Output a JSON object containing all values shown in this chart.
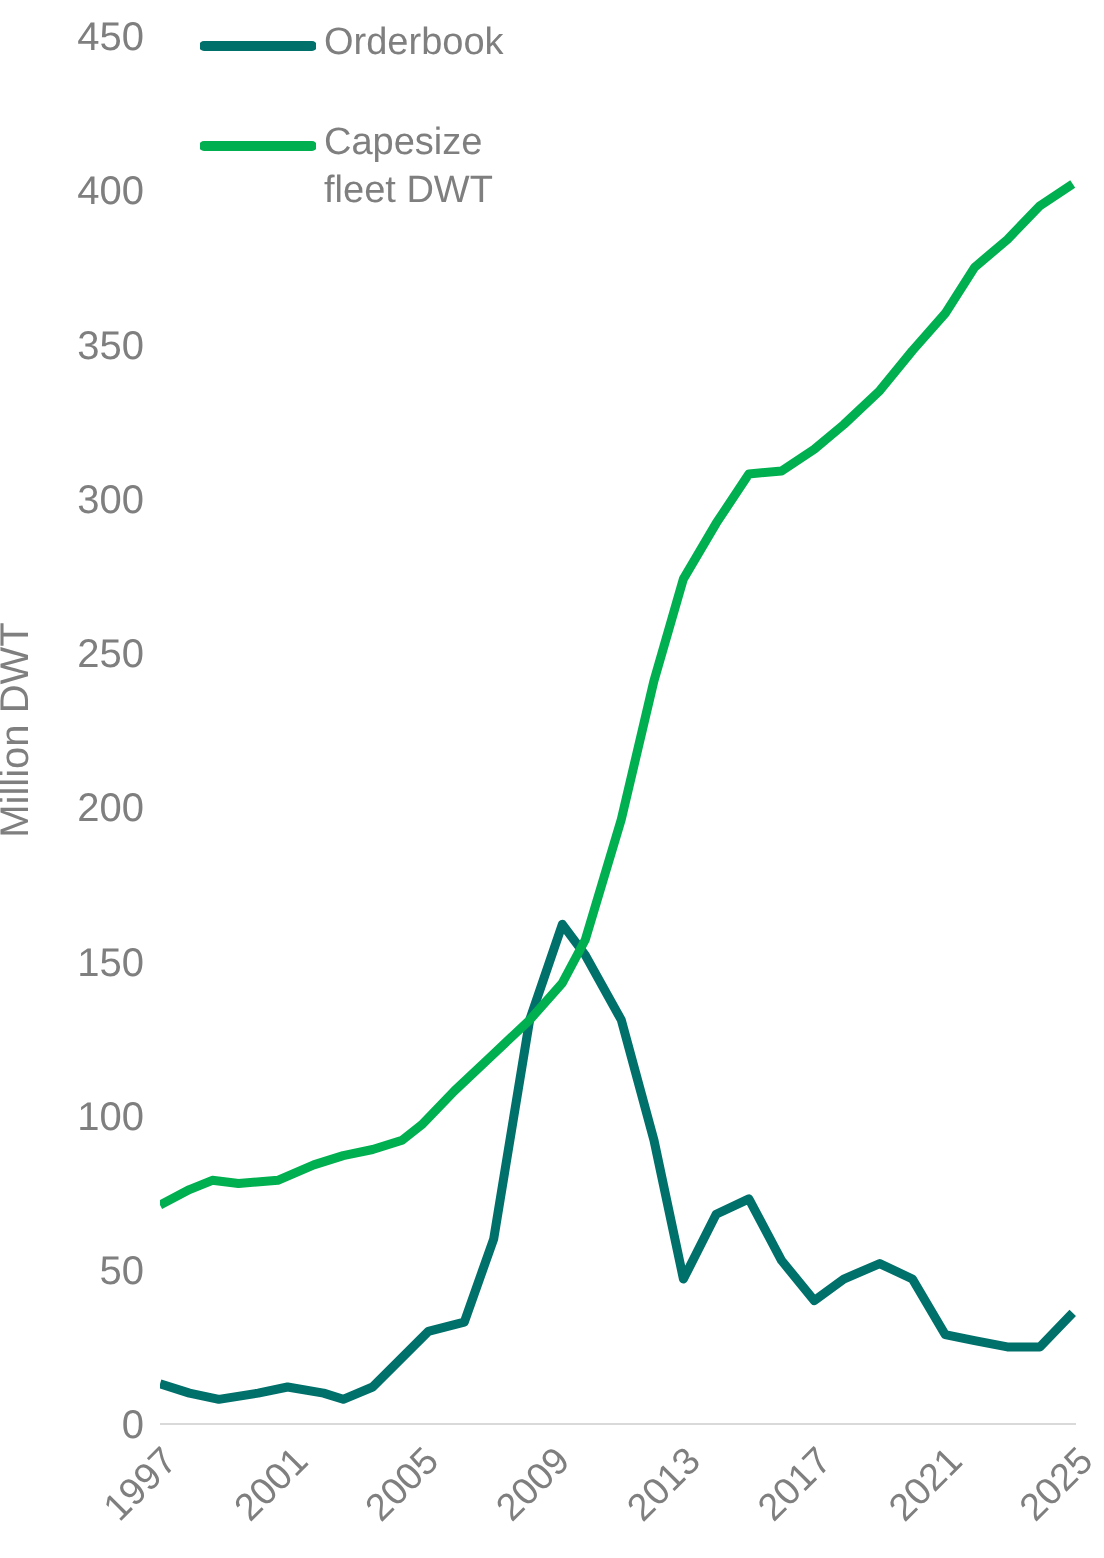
{
  "chart_data": {
    "type": "line",
    "ylabel": "Million DWT",
    "xlim": [
      1997,
      2025
    ],
    "xticks": [
      1997,
      2001,
      2005,
      2009,
      2013,
      2017,
      2021,
      2025
    ],
    "ylim": [
      0,
      450
    ],
    "yticks": [
      0,
      50,
      100,
      150,
      200,
      250,
      300,
      350,
      400,
      450
    ],
    "grid": false,
    "legend": "top left",
    "marker": "none",
    "line_style": "solid",
    "series": [
      {
        "name": "Orderbook",
        "color": "#00706b",
        "x": [
          1997,
          1997.9,
          1998.8,
          2000,
          2000.9,
          2002,
          2002.6,
          2003.5,
          2005.2,
          2006.3,
          2007.2,
          2008.3,
          2009.3,
          2010,
          2011.1,
          2012.1,
          2013,
          2014,
          2015,
          2016,
          2017,
          2017.9,
          2019,
          2020,
          2021,
          2021.9,
          2022.9,
          2023.9,
          2024.9
        ],
        "values": [
          13,
          10,
          8,
          10,
          12,
          10,
          8,
          12,
          30,
          33,
          60,
          131,
          162,
          152,
          131,
          92,
          47,
          68,
          73,
          53,
          40,
          47,
          52,
          47,
          29,
          27,
          25,
          25,
          36
        ]
      },
      {
        "name": "Capesize fleet DWT",
        "color": "#00b050",
        "x": [
          1997,
          1997.9,
          1998.6,
          1999.4,
          2000.6,
          2001.7,
          2002.6,
          2003.5,
          2004.4,
          2005,
          2006,
          2007.1,
          2008.3,
          2009.3,
          2010,
          2011.1,
          2012.1,
          2013,
          2014,
          2015,
          2016,
          2017,
          2017.9,
          2019,
          2020,
          2021,
          2021.9,
          2022.9,
          2023.9,
          2024.9
        ],
        "values": [
          71,
          76,
          79,
          78,
          79,
          84,
          87,
          89,
          92,
          97,
          108,
          119,
          131,
          143,
          157,
          196,
          241,
          274,
          292,
          308,
          309,
          316,
          324,
          335,
          348,
          360,
          375,
          384,
          395,
          402
        ]
      }
    ]
  }
}
